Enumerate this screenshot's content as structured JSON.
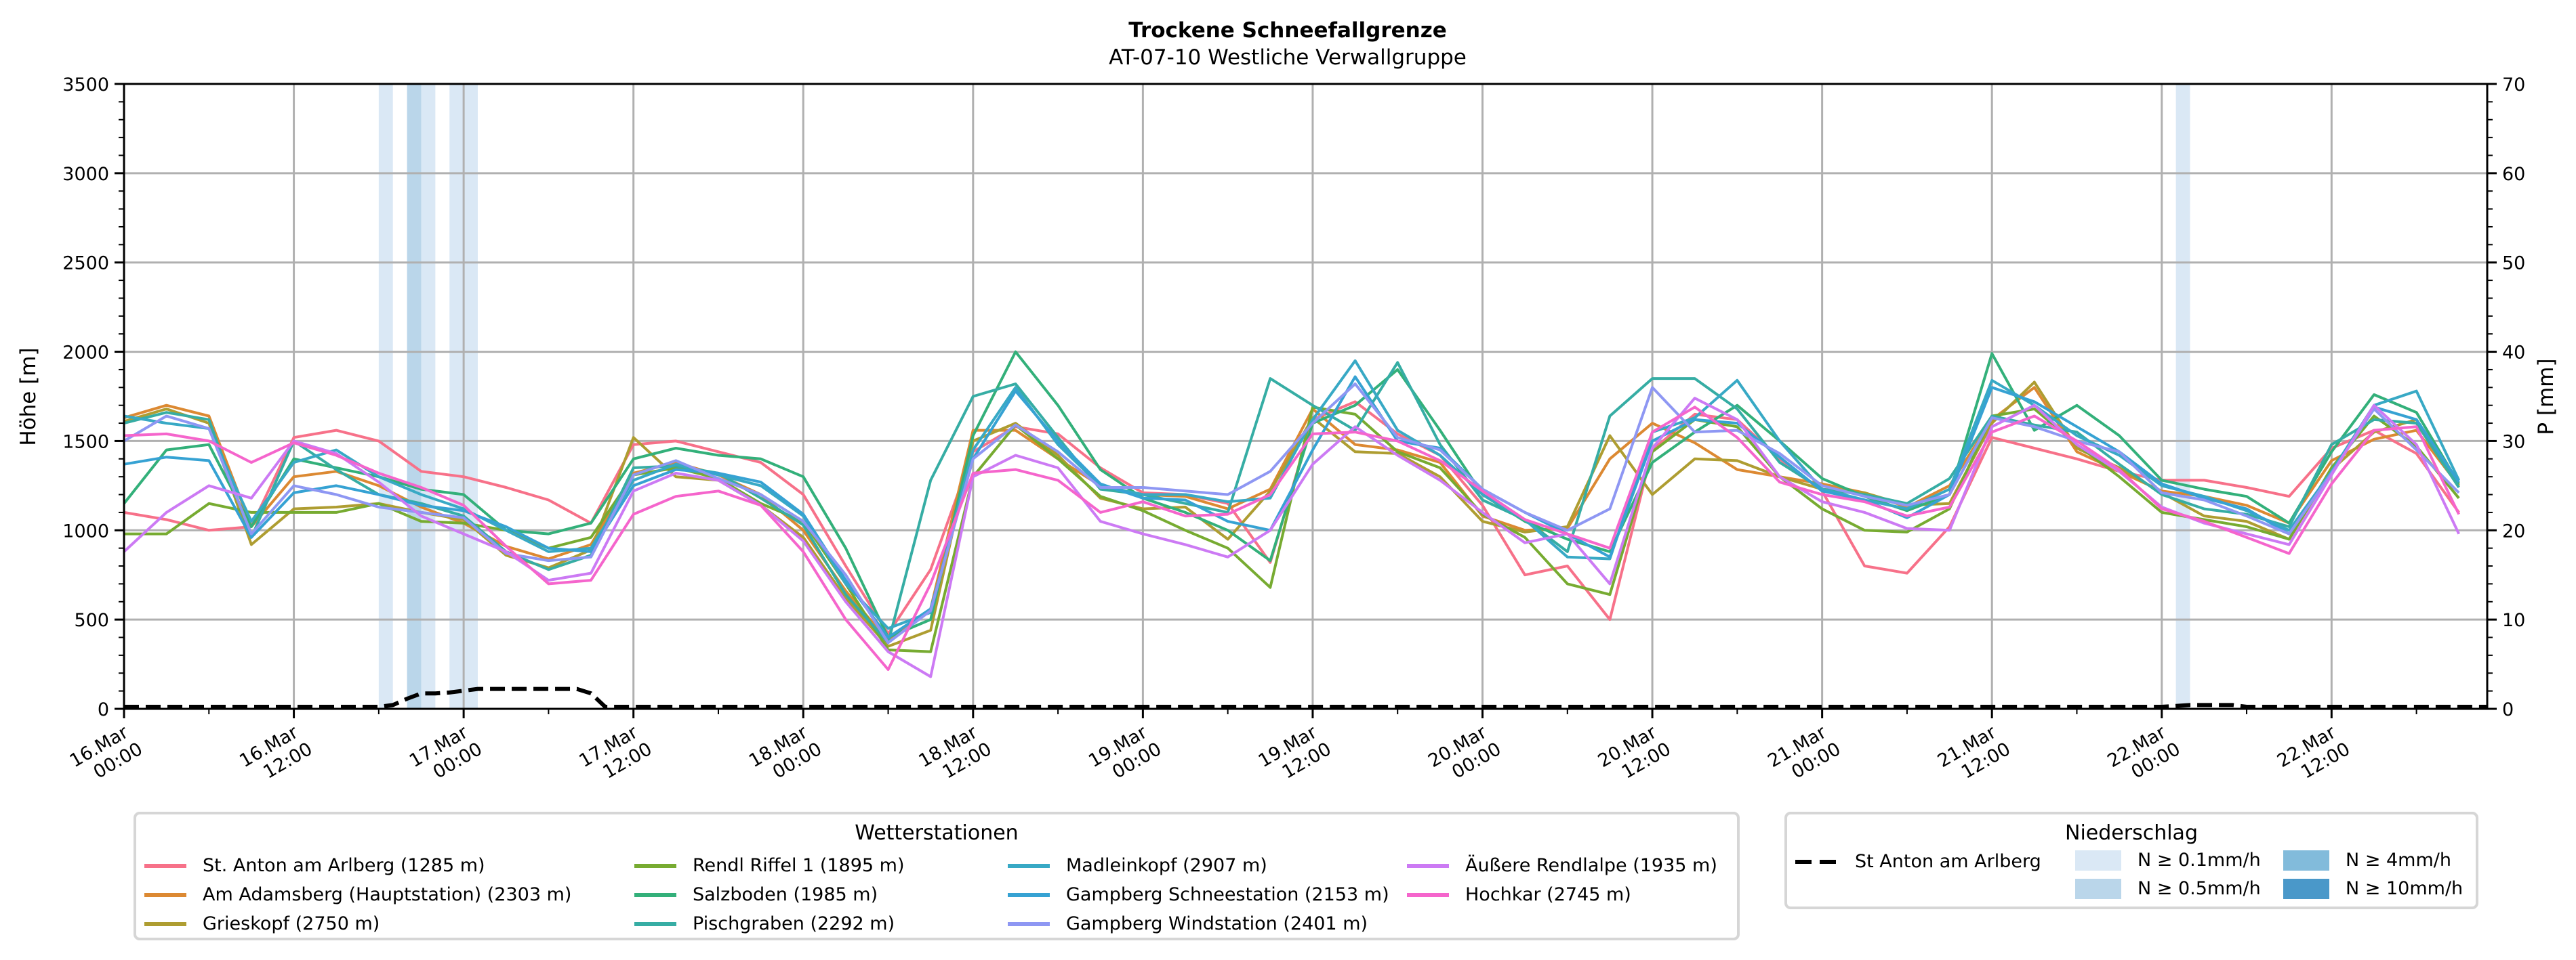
{
  "chart_data": {
    "type": "line",
    "title": "Trockene Schneefallgrenze",
    "subtitle": "AT-07-10 Westliche Verwallgruppe",
    "ylabel": "Höhe [m]",
    "y2label": "P [mm]",
    "ylim": [
      0,
      3500
    ],
    "y2lim": [
      0,
      70
    ],
    "yticks": [
      "0",
      "500",
      "1000",
      "1500",
      "2000",
      "2500",
      "3000",
      "3500"
    ],
    "y2ticks": [
      "0",
      "10",
      "20",
      "30",
      "40",
      "50",
      "60",
      "70"
    ],
    "x_unit": "hours since 16.Mar 00:00",
    "xlim": [
      0,
      167
    ],
    "xticks": [
      {
        "h": 0,
        "label1": "16.Mar",
        "label2": "00:00"
      },
      {
        "h": 12,
        "label1": "16.Mar",
        "label2": "12:00"
      },
      {
        "h": 24,
        "label1": "17.Mar",
        "label2": "00:00"
      },
      {
        "h": 36,
        "label1": "17.Mar",
        "label2": "12:00"
      },
      {
        "h": 48,
        "label1": "18.Mar",
        "label2": "00:00"
      },
      {
        "h": 60,
        "label1": "18.Mar",
        "label2": "12:00"
      },
      {
        "h": 72,
        "label1": "19.Mar",
        "label2": "00:00"
      },
      {
        "h": 84,
        "label1": "19.Mar",
        "label2": "12:00"
      },
      {
        "h": 96,
        "label1": "20.Mar",
        "label2": "00:00"
      },
      {
        "h": 108,
        "label1": "20.Mar",
        "label2": "12:00"
      },
      {
        "h": 120,
        "label1": "21.Mar",
        "label2": "00:00"
      },
      {
        "h": 132,
        "label1": "21.Mar",
        "label2": "12:00"
      },
      {
        "h": 144,
        "label1": "22.Mar",
        "label2": "00:00"
      },
      {
        "h": 156,
        "label1": "22.Mar",
        "label2": "12:00"
      }
    ],
    "grid": true,
    "x": [
      0,
      3,
      6,
      9,
      12,
      15,
      18,
      21,
      24,
      27,
      30,
      33,
      36,
      39,
      42,
      45,
      48,
      51,
      54,
      57,
      60,
      63,
      66,
      69,
      72,
      75,
      78,
      81,
      84,
      87,
      90,
      93,
      96,
      99,
      102,
      105,
      108,
      111,
      114,
      117,
      120,
      123,
      126,
      129,
      132,
      135,
      138,
      141,
      144,
      147,
      150,
      153,
      156,
      159,
      162,
      165
    ],
    "series": [
      {
        "name": "St. Anton am Arlberg (1285 m)",
        "color": "#f77189",
        "values": [
          1100,
          1060,
          1000,
          1020,
          1520,
          1560,
          1500,
          1330,
          1300,
          1240,
          1170,
          1040,
          1480,
          1500,
          1440,
          1380,
          1200,
          800,
          420,
          780,
          1440,
          1580,
          1540,
          1350,
          1210,
          1200,
          1150,
          820,
          1620,
          1720,
          1540,
          1420,
          1140,
          750,
          800,
          500,
          1450,
          1650,
          1620,
          1400,
          1220,
          800,
          760,
          1020,
          1520,
          1460,
          1400,
          1330,
          1280,
          1280,
          1240,
          1190,
          1460,
          1560,
          1430,
          1100
        ]
      },
      {
        "name": "Am Adamsberg (Hauptstation) (2303 m)",
        "color": "#dc8932",
        "values": [
          1630,
          1700,
          1640,
          1020,
          1300,
          1330,
          1250,
          1130,
          1040,
          910,
          840,
          920,
          1320,
          1380,
          1310,
          1200,
          1000,
          660,
          380,
          560,
          1560,
          1560,
          1400,
          1250,
          1200,
          1190,
          1120,
          1230,
          1680,
          1480,
          1450,
          1380,
          1080,
          1000,
          1010,
          1400,
          1600,
          1490,
          1340,
          1300,
          1260,
          1210,
          1130,
          1250,
          1620,
          1800,
          1440,
          1330,
          1220,
          1190,
          1140,
          1040,
          1390,
          1510,
          1560,
          1250
        ]
      },
      {
        "name": "Grieskopf (2750 m)",
        "color": "#ae9d31",
        "values": [
          1610,
          1680,
          1600,
          920,
          1120,
          1130,
          1150,
          1100,
          1060,
          860,
          790,
          890,
          1520,
          1300,
          1280,
          1140,
          960,
          620,
          350,
          440,
          1500,
          1600,
          1420,
          1180,
          1120,
          1130,
          950,
          1220,
          1630,
          1440,
          1430,
          1300,
          1050,
          990,
          1020,
          1530,
          1200,
          1400,
          1390,
          1300,
          1230,
          1210,
          1140,
          1150,
          1600,
          1830,
          1460,
          1350,
          1210,
          1080,
          1050,
          950,
          1340,
          1550,
          1620,
          1250
        ]
      },
      {
        "name": "Rendl Riffel 1 (1895 m)",
        "color": "#77ab31",
        "values": [
          980,
          980,
          1150,
          1100,
          1100,
          1100,
          1150,
          1050,
          1040,
          1000,
          900,
          960,
          1310,
          1350,
          1290,
          1150,
          1050,
          700,
          330,
          320,
          1300,
          1590,
          1400,
          1190,
          1110,
          1000,
          900,
          680,
          1690,
          1650,
          1440,
          1350,
          1090,
          960,
          700,
          640,
          1440,
          1620,
          1580,
          1300,
          1120,
          1000,
          990,
          1120,
          1640,
          1680,
          1480,
          1300,
          1100,
          1060,
          1020,
          950,
          1350,
          1640,
          1470,
          1180
        ]
      },
      {
        "name": "Salzboden (1985 m)",
        "color": "#33b07a",
        "values": [
          1150,
          1450,
          1480,
          1020,
          1400,
          1350,
          1300,
          1230,
          1200,
          1000,
          980,
          1040,
          1400,
          1460,
          1420,
          1400,
          1300,
          900,
          400,
          500,
          1530,
          2000,
          1700,
          1340,
          1180,
          1100,
          1000,
          830,
          1600,
          1700,
          1900,
          1560,
          1200,
          1050,
          950,
          880,
          1380,
          1550,
          1700,
          1500,
          1290,
          1190,
          1110,
          1200,
          1990,
          1560,
          1700,
          1530,
          1280,
          1230,
          1190,
          1040,
          1440,
          1760,
          1660,
          1260
        ]
      },
      {
        "name": "Pischgraben (2292 m)",
        "color": "#36ada4",
        "values": [
          1600,
          1660,
          1620,
          960,
          1500,
          1340,
          1200,
          1150,
          1080,
          880,
          780,
          860,
          1350,
          1360,
          1320,
          1180,
          1030,
          640,
          370,
          1280,
          1750,
          1820,
          1520,
          1230,
          1200,
          1150,
          1100,
          1850,
          1700,
          1560,
          1940,
          1480,
          1170,
          1060,
          880,
          1640,
          1850,
          1850,
          1680,
          1380,
          1230,
          1200,
          1150,
          1290,
          1640,
          1590,
          1550,
          1370,
          1200,
          1120,
          1090,
          1020,
          1480,
          1620,
          1600,
          1240
        ]
      },
      {
        "name": "Madleinkopf (2907 m)",
        "color": "#38a9c5",
        "values": [
          1640,
          1600,
          1570,
          1050,
          1380,
          1450,
          1300,
          1200,
          1120,
          1000,
          880,
          900,
          1280,
          1370,
          1310,
          1250,
          1080,
          700,
          450,
          540,
          1450,
          1800,
          1480,
          1250,
          1200,
          1200,
          1160,
          1180,
          1620,
          1950,
          1560,
          1420,
          1200,
          1060,
          850,
          840,
          1550,
          1630,
          1840,
          1500,
          1230,
          1170,
          1120,
          1230,
          1840,
          1700,
          1530,
          1420,
          1250,
          1190,
          1110,
          1000,
          1330,
          1700,
          1780,
          1280
        ]
      },
      {
        "name": "Gampberg Schneestation (2153 m)",
        "color": "#36a2d3",
        "values": [
          1370,
          1410,
          1390,
          960,
          1210,
          1250,
          1200,
          1140,
          1110,
          1020,
          900,
          880,
          1250,
          1340,
          1320,
          1270,
          1090,
          720,
          400,
          560,
          1400,
          1780,
          1500,
          1260,
          1180,
          1170,
          1050,
          1000,
          1450,
          1860,
          1500,
          1460,
          1230,
          1100,
          980,
          850,
          1500,
          1620,
          1600,
          1410,
          1220,
          1170,
          1070,
          1200,
          1800,
          1720,
          1580,
          1440,
          1260,
          1180,
          1120,
          980,
          1320,
          1690,
          1620,
          1270
        ]
      },
      {
        "name": "Gampberg Windstation (2401 m)",
        "color": "#8e97f3",
        "values": [
          1500,
          1640,
          1570,
          980,
          1250,
          1200,
          1130,
          1100,
          1070,
          870,
          830,
          850,
          1310,
          1390,
          1290,
          1200,
          1050,
          750,
          370,
          550,
          1400,
          1590,
          1440,
          1240,
          1240,
          1220,
          1200,
          1330,
          1600,
          1820,
          1520,
          1450,
          1230,
          1100,
          1000,
          1120,
          1800,
          1550,
          1560,
          1430,
          1250,
          1190,
          1140,
          1200,
          1630,
          1580,
          1500,
          1440,
          1210,
          1170,
          1080,
          980,
          1320,
          1680,
          1450,
          1210
        ]
      },
      {
        "name": "Äußere Rendlalpe (1935 m)",
        "color": "#cc7af4",
        "values": [
          880,
          1100,
          1250,
          1180,
          1500,
          1430,
          1270,
          1080,
          980,
          880,
          720,
          760,
          1220,
          1320,
          1280,
          1140,
          940,
          600,
          320,
          180,
          1300,
          1420,
          1350,
          1050,
          980,
          920,
          850,
          1000,
          1370,
          1580,
          1420,
          1280,
          1100,
          930,
          980,
          700,
          1460,
          1740,
          1620,
          1300,
          1160,
          1100,
          1010,
          1000,
          1580,
          1700,
          1480,
          1330,
          1130,
          1040,
          980,
          920,
          1310,
          1700,
          1480,
          980
        ]
      },
      {
        "name": "Hochkar (2745 m)",
        "color": "#f565cc",
        "values": [
          1530,
          1540,
          1500,
          1380,
          1490,
          1420,
          1320,
          1240,
          1140,
          910,
          700,
          720,
          1090,
          1190,
          1220,
          1140,
          880,
          500,
          220,
          700,
          1320,
          1340,
          1280,
          1100,
          1160,
          1080,
          1090,
          1200,
          1540,
          1550,
          1500,
          1390,
          1220,
          1060,
          980,
          900,
          1550,
          1690,
          1520,
          1270,
          1200,
          1160,
          1080,
          1130,
          1550,
          1640,
          1500,
          1340,
          1120,
          1050,
          960,
          870,
          1260,
          1560,
          1580,
          1090
        ]
      }
    ],
    "precip_station": {
      "name": "St Anton am Arlberg",
      "hours": [
        0,
        18,
        19,
        20,
        21,
        22,
        23,
        24,
        25,
        26,
        27,
        28,
        29,
        30,
        31,
        32,
        33,
        34,
        144,
        145,
        146,
        147,
        148,
        149,
        150,
        167
      ],
      "values_mm": [
        0,
        0,
        0.2,
        0.9,
        1.5,
        1.5,
        1.6,
        1.8,
        2.0,
        2.0,
        2.0,
        2.0,
        2.0,
        2.0,
        2.0,
        2.0,
        1.5,
        0,
        0,
        0.1,
        0.2,
        0.2,
        0.2,
        0.2,
        0,
        0
      ]
    },
    "precip_bands": [
      {
        "hour": 18,
        "level": "0.1"
      },
      {
        "hour": 20,
        "level": "0.5"
      },
      {
        "hour": 21,
        "level": "0.1"
      },
      {
        "hour": 23,
        "level": "0.1"
      },
      {
        "hour": 24,
        "level": "0.1"
      },
      {
        "hour": 145,
        "level": "0.1"
      }
    ],
    "band_colors": {
      "0.1": "#dae8f5",
      "0.5": "#bad6ea",
      "4": "#82bbdb",
      "10": "#4a98c9"
    },
    "legend_stations": {
      "title": "Wetterstationen",
      "placement": "bottom-left"
    },
    "legend_precip": {
      "title": "Niederschlag",
      "placement": "bottom-right",
      "line_label": "St Anton am Arlberg",
      "items": [
        {
          "label": "N ≥ 0.1mm/h",
          "color": "#dae8f5"
        },
        {
          "label": "N ≥ 0.5mm/h",
          "color": "#bad6ea"
        },
        {
          "label": "N ≥ 4mm/h",
          "color": "#82bbdb"
        },
        {
          "label": "N ≥ 10mm/h",
          "color": "#4a98c9"
        }
      ]
    }
  }
}
